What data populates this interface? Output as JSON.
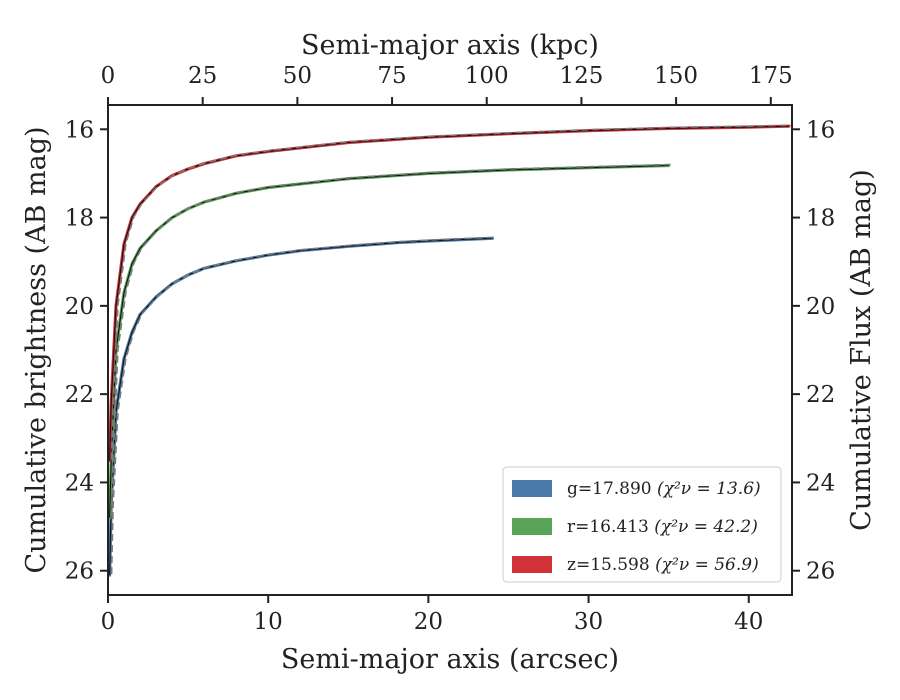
{
  "chart_data": {
    "type": "line",
    "xlabel": "Semi-major axis (arcsec)",
    "xlabel_top": "Semi-major axis (kpc)",
    "ylabel": "Cumulative brightness (AB mag)",
    "ylabel_right": "Cumulative Flux (AB mag)",
    "xlim": [
      0,
      42.7
    ],
    "ylim": [
      26.55,
      15.45
    ],
    "y_inverted": true,
    "xlim_top": [
      0,
      180.6
    ],
    "x_ticks": [
      0,
      10,
      20,
      30,
      40
    ],
    "x_ticks_top": [
      0,
      25,
      50,
      75,
      100,
      125,
      150,
      175
    ],
    "y_ticks": [
      16,
      18,
      20,
      22,
      24,
      26
    ],
    "legend_position": "lower-right",
    "series": [
      {
        "name": "g=17.890",
        "chi2_label": "χ²ν = 13.6",
        "color": "#4a7bab",
        "x": [
          0.1,
          0.2,
          0.5,
          1,
          1.5,
          2,
          3,
          4,
          5,
          6,
          8,
          10,
          12,
          15,
          18,
          20,
          22,
          24
        ],
        "y": [
          26.1,
          24.5,
          22.4,
          21.2,
          20.6,
          20.2,
          19.8,
          19.5,
          19.3,
          19.15,
          18.98,
          18.85,
          18.75,
          18.65,
          18.57,
          18.53,
          18.5,
          18.47
        ]
      },
      {
        "name": "r=16.413",
        "chi2_label": "χ²ν = 42.2",
        "color": "#5aa457",
        "x": [
          0.1,
          0.2,
          0.5,
          1,
          1.5,
          2,
          3,
          4,
          5,
          6,
          8,
          10,
          15,
          20,
          25,
          30,
          35
        ],
        "y": [
          24.8,
          23.5,
          21.0,
          19.7,
          19.05,
          18.7,
          18.3,
          18.0,
          17.8,
          17.65,
          17.45,
          17.32,
          17.12,
          17.0,
          16.92,
          16.87,
          16.82
        ]
      },
      {
        "name": "z=15.598",
        "chi2_label": "χ²ν = 56.9",
        "color": "#d13238",
        "x": [
          0.1,
          0.2,
          0.5,
          1,
          1.5,
          2,
          3,
          4,
          5,
          6,
          8,
          10,
          15,
          20,
          25,
          30,
          35,
          40,
          42.5
        ],
        "y": [
          23.5,
          22.2,
          20.0,
          18.6,
          18.0,
          17.7,
          17.3,
          17.05,
          16.9,
          16.78,
          16.6,
          16.5,
          16.3,
          16.18,
          16.1,
          16.03,
          15.98,
          15.95,
          15.93
        ]
      }
    ]
  }
}
